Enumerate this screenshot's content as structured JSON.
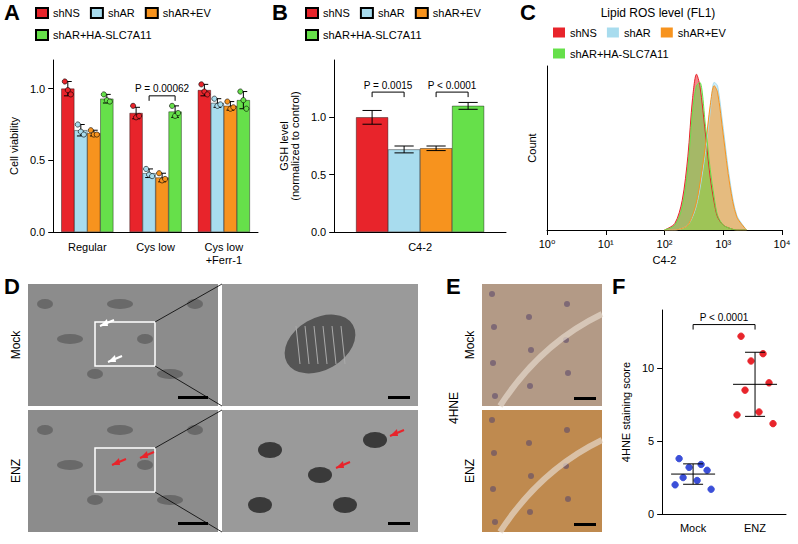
{
  "chart_data": [
    {
      "panel": "A",
      "type": "bar",
      "categories": [
        "Regular",
        "Cys low",
        "Cys low\n+Ferr-1"
      ],
      "y_label": "Cell viability",
      "ylim": [
        0,
        1.2
      ],
      "yticks": [
        {
          "value": 0,
          "label": "0.0"
        },
        {
          "value": 0.5,
          "label": "0.5"
        },
        {
          "value": 1,
          "label": "1.0"
        }
      ],
      "legend": "top",
      "series": [
        {
          "name": "shNS",
          "color": "#e8242b",
          "values": [
            1.0,
            0.83,
            0.99
          ],
          "errors": [
            0.05,
            0.04,
            0.04
          ],
          "points": [
            [
              1.05,
              0.99,
              0.96
            ],
            [
              0.88,
              0.8,
              0.81
            ],
            [
              1.03,
              0.98,
              0.96
            ]
          ]
        },
        {
          "name": "shAR",
          "color": "#a8dcee",
          "values": [
            0.71,
            0.41,
            0.9
          ],
          "errors": [
            0.04,
            0.03,
            0.03
          ],
          "points": [
            [
              0.75,
              0.7,
              0.68
            ],
            [
              0.44,
              0.4,
              0.39
            ],
            [
              0.93,
              0.88,
              0.89
            ]
          ]
        },
        {
          "name": "shAR+EV",
          "color": "#f7931e",
          "values": [
            0.69,
            0.38,
            0.88
          ],
          "errors": [
            0.02,
            0.03,
            0.03
          ],
          "points": [
            [
              0.71,
              0.68,
              0.68
            ],
            [
              0.41,
              0.36,
              0.37
            ],
            [
              0.91,
              0.86,
              0.87
            ]
          ]
        },
        {
          "name": "shAR+HA-SLC7A11",
          "color": "#66e04a",
          "values": [
            0.93,
            0.84,
            0.92
          ],
          "errors": [
            0.03,
            0.04,
            0.06
          ],
          "points": [
            [
              0.96,
              0.92,
              0.91
            ],
            [
              0.88,
              0.81,
              0.83
            ],
            [
              0.98,
              0.92,
              0.86
            ]
          ]
        }
      ],
      "annotations": [
        {
          "text": "P = 0.00062",
          "category": "Cys low",
          "from": "shAR",
          "to": "shAR+HA-SLC7A11",
          "y": 0.95
        }
      ]
    },
    {
      "panel": "B",
      "type": "bar",
      "categories": [
        "C4-2"
      ],
      "y_label": "GSH level\n(normalized to control)",
      "ylim": [
        0,
        1.5
      ],
      "yticks": [
        {
          "value": 0,
          "label": "0.0"
        },
        {
          "value": 0.5,
          "label": "0.5"
        },
        {
          "value": 1,
          "label": "1.0"
        }
      ],
      "legend": "top",
      "series": [
        {
          "name": "shNS",
          "color": "#e8242b",
          "values": [
            1.0
          ],
          "errors": [
            0.06
          ]
        },
        {
          "name": "shAR",
          "color": "#a8dcee",
          "values": [
            0.72
          ],
          "errors": [
            0.03
          ]
        },
        {
          "name": "shAR+EV",
          "color": "#f7931e",
          "values": [
            0.73
          ],
          "errors": [
            0.02
          ]
        },
        {
          "name": "shAR+HA-SLC7A11",
          "color": "#66e04a",
          "values": [
            1.1
          ],
          "errors": [
            0.03
          ]
        }
      ],
      "annotations": [
        {
          "text": "P = 0.0015",
          "category": "C4-2",
          "from": "shNS",
          "to": "shAR",
          "y": 1.22
        },
        {
          "text": "P < 0.0001",
          "category": "C4-2",
          "from": "shAR+EV",
          "to": "shAR+HA-SLC7A11",
          "y": 1.22
        }
      ]
    },
    {
      "panel": "C",
      "type": "line",
      "title": "Lipid ROS level (FL1)",
      "x_label": "C4-2",
      "y_label": "Count",
      "log": "x",
      "tick_labels": "x",
      "legend": "top",
      "xlim": [
        1,
        10000
      ],
      "xticks": [
        {
          "value": 1,
          "label": "10⁰"
        },
        {
          "value": 10,
          "label": "10¹"
        },
        {
          "value": 100,
          "label": "10²"
        },
        {
          "value": 1000,
          "label": "10³"
        },
        {
          "value": 10000,
          "label": "10⁴"
        }
      ],
      "ylim": [
        0,
        100
      ],
      "x": [
        100,
        150,
        200,
        250,
        300,
        350,
        400,
        500,
        600,
        700,
        800,
        1000,
        1300,
        1700,
        2500
      ],
      "series": [
        {
          "name": "shNS",
          "color": "#e8242b",
          "values": [
            0,
            4,
            18,
            45,
            80,
            95,
            88,
            58,
            32,
            17,
            8,
            3,
            1,
            0,
            0
          ]
        },
        {
          "name": "shAR",
          "color": "#a8dcee",
          "values": [
            0,
            0,
            1,
            3,
            8,
            15,
            25,
            48,
            72,
            90,
            88,
            62,
            30,
            9,
            0
          ]
        },
        {
          "name": "shAR+EV",
          "color": "#f7931e",
          "values": [
            0,
            0,
            1,
            3,
            9,
            17,
            28,
            52,
            76,
            88,
            84,
            58,
            27,
            8,
            0
          ]
        },
        {
          "name": "shAR+HA-SLC7A11",
          "color": "#66e04a",
          "values": [
            0,
            3,
            14,
            38,
            72,
            88,
            90,
            63,
            37,
            20,
            9,
            3,
            1,
            0,
            0
          ]
        }
      ]
    },
    {
      "panel": "F",
      "type": "scatter",
      "categories": [
        "Mock",
        "ENZ"
      ],
      "y_label": "4HNE staining score",
      "ylim": [
        0,
        14
      ],
      "yticks": [
        0,
        5,
        10
      ],
      "colors": [
        "#3b4fd8",
        "#e8242b"
      ],
      "values": [
        [
          3.8,
          3.4,
          3.2,
          3.0,
          2.5,
          2.3,
          2.0,
          1.7
        ],
        [
          12.2,
          11.0,
          10.5,
          9.0,
          8.5,
          7.0,
          6.8,
          6.2
        ]
      ],
      "means": [
        2.74,
        8.9
      ],
      "sd": [
        0.7,
        2.2
      ],
      "annotations": [
        {
          "text": "P < 0.0001",
          "from": "Mock",
          "to": "ENZ",
          "y": 13
        }
      ]
    }
  ],
  "figures": [
    {
      "panel": "D",
      "rows": [
        "Mock",
        "ENZ"
      ]
    },
    {
      "panel": "E",
      "stain": "4HNE",
      "rows": [
        "Mock",
        "ENZ"
      ]
    }
  ]
}
